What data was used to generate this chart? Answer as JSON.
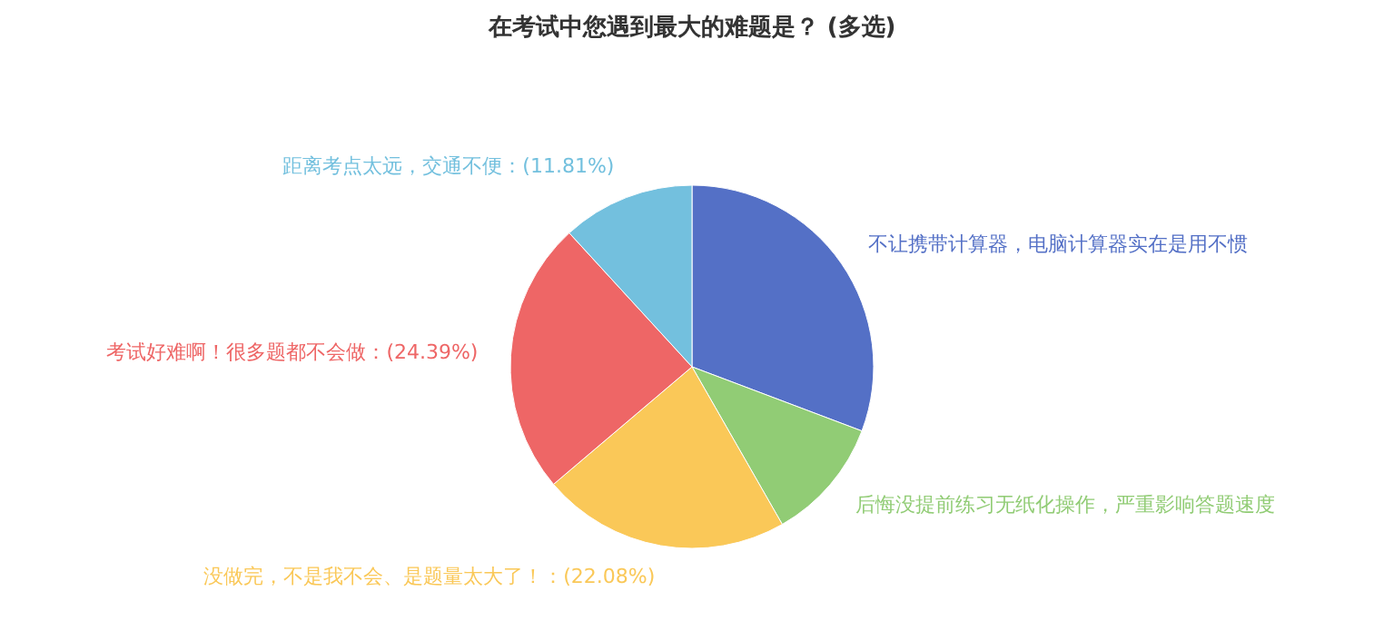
{
  "chart_data": {
    "type": "pie",
    "title": "在考试中您遇到最大的难题是？ (多选)",
    "categories": [
      "不让携带计算器，电脑计算器实在是用不惯",
      "后悔没提前练习无纸化操作，严重影响答题速度",
      "没做完，不是我不会、是题量太大了！",
      "考试好难啊！很多题都不会做",
      "距离考点太远，交通不便"
    ],
    "values": [
      30.75,
      10.97,
      22.08,
      24.39,
      11.81
    ],
    "value_labels": [
      null,
      null,
      "(22.08%)",
      "(24.39%)",
      "(11.81%)"
    ],
    "colors": [
      "#5470c6",
      "#91cc75",
      "#fac858",
      "#ee6666",
      "#73c0de"
    ]
  }
}
